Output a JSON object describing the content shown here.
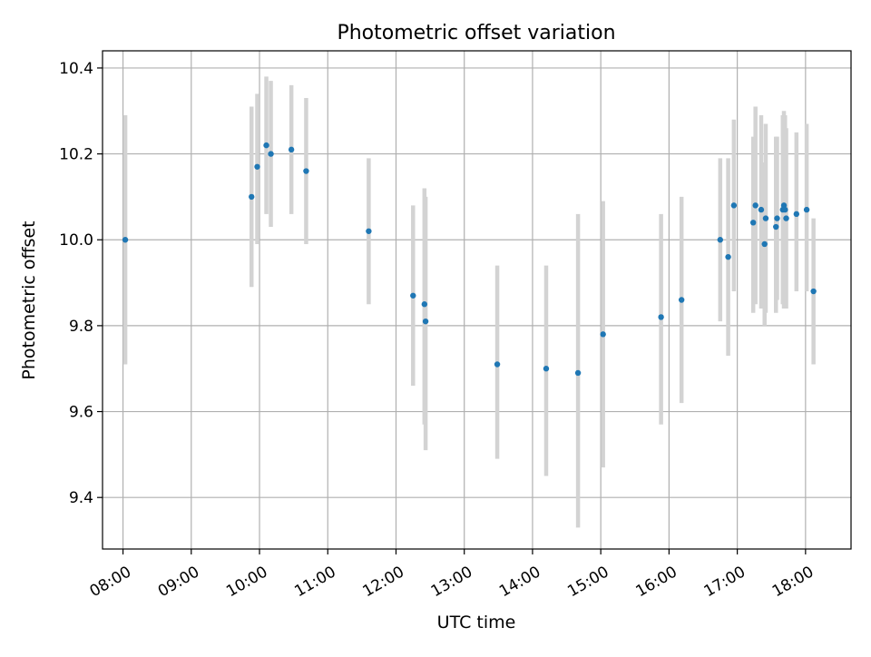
{
  "chart_data": {
    "type": "scatter",
    "title": "Photometric offset variation",
    "xlabel": "UTC time",
    "ylabel": "Photometric offset",
    "xlim": [
      "07:42",
      "18:40"
    ],
    "ylim": [
      9.28,
      10.44
    ],
    "grid": true,
    "x_ticks": [
      "08:00",
      "09:00",
      "10:00",
      "11:00",
      "12:00",
      "13:00",
      "14:00",
      "15:00",
      "16:00",
      "17:00",
      "18:00"
    ],
    "y_ticks": [
      "9.4",
      "9.6",
      "9.8",
      "10.0",
      "10.2",
      "10.4"
    ],
    "colors": {
      "marker": "#1f77b4",
      "errorbar": "#d3d3d3",
      "grid": "#b0b0b0",
      "axes": "#000000"
    },
    "points": [
      {
        "time": "08:02",
        "y": 10.0,
        "ylow": 9.71,
        "yhigh": 10.29
      },
      {
        "time": "09:53",
        "y": 10.1,
        "ylow": 9.89,
        "yhigh": 10.31
      },
      {
        "time": "09:58",
        "y": 10.17,
        "ylow": 9.99,
        "yhigh": 10.34
      },
      {
        "time": "10:06",
        "y": 10.22,
        "ylow": 10.06,
        "yhigh": 10.38
      },
      {
        "time": "10:10",
        "y": 10.2,
        "ylow": 10.03,
        "yhigh": 10.37
      },
      {
        "time": "10:28",
        "y": 10.21,
        "ylow": 10.06,
        "yhigh": 10.36
      },
      {
        "time": "10:41",
        "y": 10.16,
        "ylow": 9.99,
        "yhigh": 10.33
      },
      {
        "time": "11:36",
        "y": 10.02,
        "ylow": 9.85,
        "yhigh": 10.19
      },
      {
        "time": "12:15",
        "y": 9.87,
        "ylow": 9.66,
        "yhigh": 10.08
      },
      {
        "time": "12:25",
        "y": 9.85,
        "ylow": 9.57,
        "yhigh": 10.12
      },
      {
        "time": "12:26",
        "y": 9.81,
        "ylow": 9.51,
        "yhigh": 10.1
      },
      {
        "time": "13:29",
        "y": 9.71,
        "ylow": 9.49,
        "yhigh": 9.94
      },
      {
        "time": "14:12",
        "y": 9.7,
        "ylow": 9.45,
        "yhigh": 9.94
      },
      {
        "time": "14:40",
        "y": 9.69,
        "ylow": 9.33,
        "yhigh": 10.06
      },
      {
        "time": "15:02",
        "y": 9.78,
        "ylow": 9.47,
        "yhigh": 10.09
      },
      {
        "time": "15:53",
        "y": 9.82,
        "ylow": 9.57,
        "yhigh": 10.06
      },
      {
        "time": "16:11",
        "y": 9.86,
        "ylow": 9.62,
        "yhigh": 10.1
      },
      {
        "time": "16:45",
        "y": 10.0,
        "ylow": 9.81,
        "yhigh": 10.19
      },
      {
        "time": "16:52",
        "y": 9.96,
        "ylow": 9.73,
        "yhigh": 10.19
      },
      {
        "time": "16:57",
        "y": 10.08,
        "ylow": 9.88,
        "yhigh": 10.28
      },
      {
        "time": "17:14",
        "y": 10.04,
        "ylow": 9.83,
        "yhigh": 10.24
      },
      {
        "time": "17:16",
        "y": 10.08,
        "ylow": 9.85,
        "yhigh": 10.31
      },
      {
        "time": "17:21",
        "y": 10.07,
        "ylow": 9.84,
        "yhigh": 10.29
      },
      {
        "time": "17:24",
        "y": 9.99,
        "ylow": 9.8,
        "yhigh": 10.18
      },
      {
        "time": "17:25",
        "y": 10.05,
        "ylow": 9.83,
        "yhigh": 10.27
      },
      {
        "time": "17:34",
        "y": 10.03,
        "ylow": 9.83,
        "yhigh": 10.24
      },
      {
        "time": "17:35",
        "y": 10.05,
        "ylow": 9.86,
        "yhigh": 10.24
      },
      {
        "time": "17:40",
        "y": 10.07,
        "ylow": 9.85,
        "yhigh": 10.29
      },
      {
        "time": "17:41",
        "y": 10.08,
        "ylow": 9.84,
        "yhigh": 10.3
      },
      {
        "time": "17:42",
        "y": 10.07,
        "ylow": 9.84,
        "yhigh": 10.29
      },
      {
        "time": "17:43",
        "y": 10.05,
        "ylow": 9.84,
        "yhigh": 10.26
      },
      {
        "time": "17:52",
        "y": 10.06,
        "ylow": 9.88,
        "yhigh": 10.25
      },
      {
        "time": "18:01",
        "y": 10.07,
        "ylow": 9.88,
        "yhigh": 10.27
      },
      {
        "time": "18:07",
        "y": 9.88,
        "ylow": 9.71,
        "yhigh": 10.05
      }
    ]
  }
}
